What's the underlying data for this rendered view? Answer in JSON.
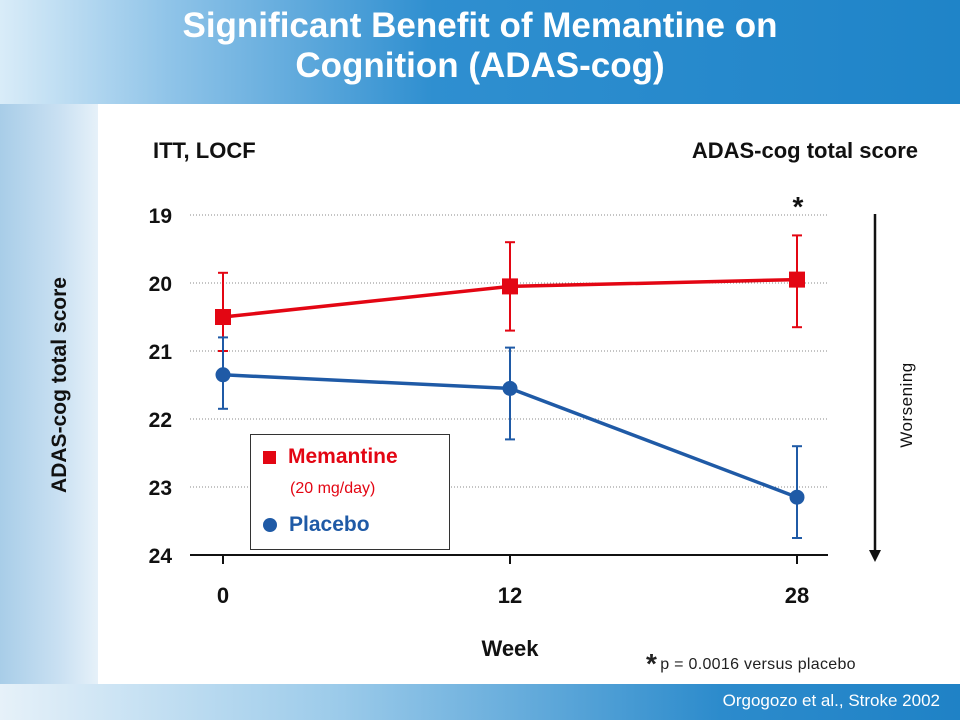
{
  "slide": {
    "title_line1": "Significant Benefit of Memantine on",
    "title_line2": "Cognition (ADAS-cog)",
    "subhead_left": "ITT, LOCF",
    "subhead_right": "ADAS-cog total score",
    "citation": "Orgogozo et al., Stroke 2002",
    "footnote_symbol": "*",
    "footnote_text": "p = 0.0016 versus placebo"
  },
  "chart_data": {
    "type": "line",
    "xlabel": "Week",
    "ylabel": "ADAS-cog total score",
    "x": [
      0,
      12,
      28
    ],
    "x_tick_labels": [
      "0",
      "12",
      "28"
    ],
    "y_tick_labels": [
      "19",
      "20",
      "21",
      "22",
      "23",
      "24"
    ],
    "ylim": [
      19,
      24
    ],
    "y_inverted": true,
    "grid": "horizontal dotted",
    "series": [
      {
        "name": "Memantine",
        "sublabel": "(20 mg/day)",
        "color": "#e30613",
        "marker": "square",
        "values": [
          20.5,
          20.05,
          19.95
        ],
        "err_low": [
          21.0,
          20.7,
          20.65
        ],
        "err_high": [
          19.85,
          19.4,
          19.3
        ]
      },
      {
        "name": "Placebo",
        "color": "#1f5aa6",
        "marker": "circle",
        "values": [
          21.35,
          21.55,
          23.15
        ],
        "err_low": [
          21.85,
          22.3,
          23.75
        ],
        "err_high": [
          20.8,
          20.95,
          22.4
        ]
      }
    ],
    "annotations": [
      {
        "text": "*",
        "x": 28,
        "y": 19
      }
    ],
    "side_arrow_label": "Worsening",
    "legend_position": "lower-left"
  }
}
